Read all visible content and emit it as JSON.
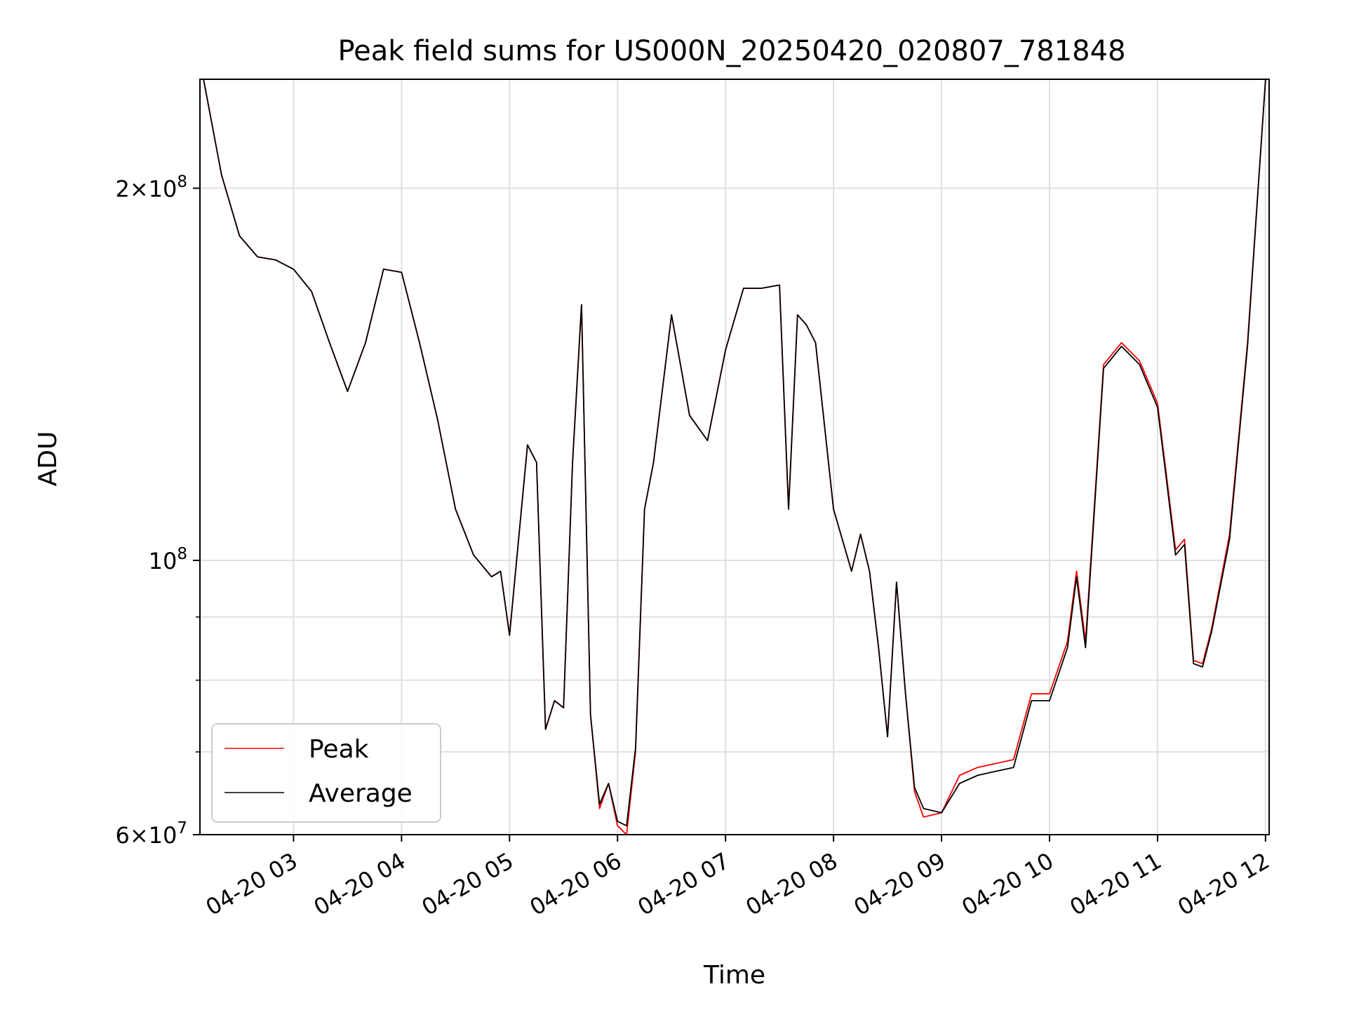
{
  "chart_data": {
    "type": "line",
    "title": "Peak field sums for US000N_20250420_020807_781848",
    "xlabel": "Time",
    "ylabel": "ADU",
    "x_scale": "time",
    "y_scale": "log",
    "xlim": [
      "2025-04-20 02:08",
      "2025-04-20 12:02"
    ],
    "ylim": [
      60000000,
      245000000
    ],
    "x_ticks": [
      {
        "value": "2025-04-20 03:00",
        "label": "04-20 03"
      },
      {
        "value": "2025-04-20 04:00",
        "label": "04-20 04"
      },
      {
        "value": "2025-04-20 05:00",
        "label": "04-20 05"
      },
      {
        "value": "2025-04-20 06:00",
        "label": "04-20 06"
      },
      {
        "value": "2025-04-20 07:00",
        "label": "04-20 07"
      },
      {
        "value": "2025-04-20 08:00",
        "label": "04-20 08"
      },
      {
        "value": "2025-04-20 09:00",
        "label": "04-20 09"
      },
      {
        "value": "2025-04-20 10:00",
        "label": "04-20 10"
      },
      {
        "value": "2025-04-20 11:00",
        "label": "04-20 11"
      },
      {
        "value": "2025-04-20 12:00",
        "label": "04-20 12"
      }
    ],
    "y_major_ticks": [
      {
        "value": 60000000,
        "mantissa": "6",
        "exponent": "7"
      },
      {
        "value": 100000000,
        "mantissa": "",
        "exponent": "8"
      },
      {
        "value": 200000000,
        "mantissa": "2",
        "exponent": "8"
      }
    ],
    "y_minor_gridlines": [
      70000000,
      80000000,
      90000000
    ],
    "grid": true,
    "legend_position": "lower-left",
    "series": [
      {
        "name": "Peak",
        "color": "#ff0000",
        "x": [
          "2025-04-20 02:10",
          "2025-04-20 02:20",
          "2025-04-20 02:30",
          "2025-04-20 02:40",
          "2025-04-20 02:50",
          "2025-04-20 03:00",
          "2025-04-20 03:10",
          "2025-04-20 03:20",
          "2025-04-20 03:30",
          "2025-04-20 03:40",
          "2025-04-20 03:50",
          "2025-04-20 04:00",
          "2025-04-20 04:10",
          "2025-04-20 04:20",
          "2025-04-20 04:30",
          "2025-04-20 04:40",
          "2025-04-20 04:50",
          "2025-04-20 04:55",
          "2025-04-20 05:00",
          "2025-04-20 05:10",
          "2025-04-20 05:15",
          "2025-04-20 05:20",
          "2025-04-20 05:25",
          "2025-04-20 05:30",
          "2025-04-20 05:35",
          "2025-04-20 05:40",
          "2025-04-20 05:45",
          "2025-04-20 05:50",
          "2025-04-20 05:55",
          "2025-04-20 06:00",
          "2025-04-20 06:05",
          "2025-04-20 06:10",
          "2025-04-20 06:15",
          "2025-04-20 06:20",
          "2025-04-20 06:30",
          "2025-04-20 06:40",
          "2025-04-20 06:50",
          "2025-04-20 07:00",
          "2025-04-20 07:10",
          "2025-04-20 07:20",
          "2025-04-20 07:30",
          "2025-04-20 07:35",
          "2025-04-20 07:40",
          "2025-04-20 07:45",
          "2025-04-20 07:50",
          "2025-04-20 08:00",
          "2025-04-20 08:10",
          "2025-04-20 08:15",
          "2025-04-20 08:20",
          "2025-04-20 08:25",
          "2025-04-20 08:30",
          "2025-04-20 08:35",
          "2025-04-20 08:40",
          "2025-04-20 08:45",
          "2025-04-20 08:50",
          "2025-04-20 09:00",
          "2025-04-20 09:10",
          "2025-04-20 09:20",
          "2025-04-20 09:30",
          "2025-04-20 09:40",
          "2025-04-20 09:50",
          "2025-04-20 10:00",
          "2025-04-20 10:10",
          "2025-04-20 10:15",
          "2025-04-20 10:20",
          "2025-04-20 10:30",
          "2025-04-20 10:40",
          "2025-04-20 10:50",
          "2025-04-20 11:00",
          "2025-04-20 11:05",
          "2025-04-20 11:10",
          "2025-04-20 11:15",
          "2025-04-20 11:20",
          "2025-04-20 11:25",
          "2025-04-20 11:30",
          "2025-04-20 11:40",
          "2025-04-20 11:50",
          "2025-04-20 12:00"
        ],
        "values": [
          245000000,
          205000000,
          183000000,
          176000000,
          175000000,
          172000000,
          165000000,
          150000000,
          137000000,
          150000000,
          172000000,
          171000000,
          150000000,
          130000000,
          110000000,
          101000000,
          97000000,
          98000000,
          87000000,
          124000000,
          120000000,
          73000000,
          77000000,
          76000000,
          120000000,
          161000000,
          75000000,
          63000000,
          66000000,
          61000000,
          60000000,
          70000000,
          110000000,
          120000000,
          158000000,
          131000000,
          125000000,
          148000000,
          166000000,
          166000000,
          167000000,
          110000000,
          158000000,
          155000000,
          150000000,
          110000000,
          98000000,
          105000000,
          98000000,
          85000000,
          72000000,
          96000000,
          78000000,
          65000000,
          62000000,
          62500000,
          67000000,
          68000000,
          68500000,
          69000000,
          78000000,
          78000000,
          86000000,
          98000000,
          86000000,
          144000000,
          150000000,
          145000000,
          134000000,
          117000000,
          102000000,
          104000000,
          83000000,
          82500000,
          88000000,
          105000000,
          150000000,
          245000000
        ]
      },
      {
        "name": "Average",
        "color": "#000000",
        "x": [
          "2025-04-20 02:10",
          "2025-04-20 02:20",
          "2025-04-20 02:30",
          "2025-04-20 02:40",
          "2025-04-20 02:50",
          "2025-04-20 03:00",
          "2025-04-20 03:10",
          "2025-04-20 03:20",
          "2025-04-20 03:30",
          "2025-04-20 03:40",
          "2025-04-20 03:50",
          "2025-04-20 04:00",
          "2025-04-20 04:10",
          "2025-04-20 04:20",
          "2025-04-20 04:30",
          "2025-04-20 04:40",
          "2025-04-20 04:50",
          "2025-04-20 04:55",
          "2025-04-20 05:00",
          "2025-04-20 05:10",
          "2025-04-20 05:15",
          "2025-04-20 05:20",
          "2025-04-20 05:25",
          "2025-04-20 05:30",
          "2025-04-20 05:35",
          "2025-04-20 05:40",
          "2025-04-20 05:45",
          "2025-04-20 05:50",
          "2025-04-20 05:55",
          "2025-04-20 06:00",
          "2025-04-20 06:05",
          "2025-04-20 06:10",
          "2025-04-20 06:15",
          "2025-04-20 06:20",
          "2025-04-20 06:30",
          "2025-04-20 06:40",
          "2025-04-20 06:50",
          "2025-04-20 07:00",
          "2025-04-20 07:10",
          "2025-04-20 07:20",
          "2025-04-20 07:30",
          "2025-04-20 07:35",
          "2025-04-20 07:40",
          "2025-04-20 07:45",
          "2025-04-20 07:50",
          "2025-04-20 08:00",
          "2025-04-20 08:10",
          "2025-04-20 08:15",
          "2025-04-20 08:20",
          "2025-04-20 08:25",
          "2025-04-20 08:30",
          "2025-04-20 08:35",
          "2025-04-20 08:40",
          "2025-04-20 08:45",
          "2025-04-20 08:50",
          "2025-04-20 09:00",
          "2025-04-20 09:10",
          "2025-04-20 09:20",
          "2025-04-20 09:30",
          "2025-04-20 09:40",
          "2025-04-20 09:50",
          "2025-04-20 10:00",
          "2025-04-20 10:10",
          "2025-04-20 10:15",
          "2025-04-20 10:20",
          "2025-04-20 10:30",
          "2025-04-20 10:40",
          "2025-04-20 10:50",
          "2025-04-20 11:00",
          "2025-04-20 11:05",
          "2025-04-20 11:10",
          "2025-04-20 11:15",
          "2025-04-20 11:20",
          "2025-04-20 11:25",
          "2025-04-20 11:30",
          "2025-04-20 11:40",
          "2025-04-20 11:50",
          "2025-04-20 12:00"
        ],
        "values": [
          245000000,
          205000000,
          183000000,
          176000000,
          175000000,
          172000000,
          165000000,
          150000000,
          137000000,
          150000000,
          172000000,
          171000000,
          150000000,
          130000000,
          110000000,
          101000000,
          97000000,
          98000000,
          87000000,
          124000000,
          120000000,
          73000000,
          77000000,
          76000000,
          120000000,
          161000000,
          75000000,
          63500000,
          66000000,
          61500000,
          61000000,
          70500000,
          110000000,
          120000000,
          158000000,
          131000000,
          125000000,
          148000000,
          166000000,
          166000000,
          167000000,
          110000000,
          158000000,
          155000000,
          150000000,
          110000000,
          98000000,
          105000000,
          98000000,
          85000000,
          72000000,
          96000000,
          78000000,
          65500000,
          63000000,
          62500000,
          66000000,
          67000000,
          67500000,
          68000000,
          77000000,
          77000000,
          85000000,
          97000000,
          85000000,
          143000000,
          149000000,
          144000000,
          133000000,
          116000000,
          101000000,
          103000000,
          82500000,
          82000000,
          87500000,
          104000000,
          149000000,
          245000000
        ]
      }
    ]
  }
}
